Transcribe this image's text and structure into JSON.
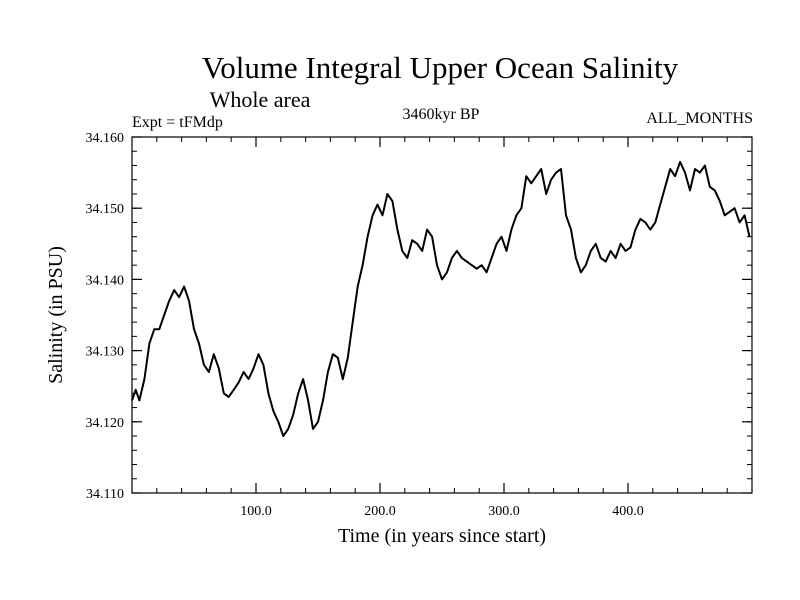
{
  "chart_data": {
    "type": "line",
    "title": "Volume Integral Upper Ocean Salinity",
    "subtitle": "Whole area",
    "left_label": "Expt = tFMdp",
    "center_label": "3460kyr BP",
    "right_label": "ALL_MONTHS",
    "xlabel": "Time (in years since start)",
    "ylabel": "Salinity (in PSU)",
    "xlim": [
      0,
      500
    ],
    "ylim": [
      34.11,
      34.16
    ],
    "x_ticks": [
      {
        "value": 100,
        "label": "100.0"
      },
      {
        "value": 200,
        "label": "200.0"
      },
      {
        "value": 300,
        "label": "300.0"
      },
      {
        "value": 400,
        "label": "400.0"
      }
    ],
    "y_ticks": [
      {
        "value": 34.11,
        "label": "34.110"
      },
      {
        "value": 34.12,
        "label": "34.120"
      },
      {
        "value": 34.13,
        "label": "34.130"
      },
      {
        "value": 34.14,
        "label": "34.140"
      },
      {
        "value": 34.15,
        "label": "34.150"
      },
      {
        "value": 34.16,
        "label": "34.160"
      }
    ],
    "series": [
      {
        "name": "salinity",
        "color": "#000000",
        "x": [
          0,
          3,
          6,
          10,
          14,
          18,
          22,
          26,
          30,
          34,
          38,
          42,
          46,
          50,
          54,
          58,
          62,
          66,
          70,
          74,
          78,
          82,
          86,
          90,
          94,
          98,
          102,
          106,
          110,
          114,
          118,
          122,
          126,
          130,
          134,
          138,
          142,
          146,
          150,
          154,
          158,
          162,
          166,
          170,
          174,
          178,
          182,
          186,
          190,
          194,
          198,
          202,
          206,
          210,
          214,
          218,
          222,
          226,
          230,
          234,
          238,
          242,
          246,
          250,
          254,
          258,
          262,
          266,
          270,
          274,
          278,
          282,
          286,
          290,
          294,
          298,
          302,
          306,
          310,
          314,
          318,
          322,
          326,
          330,
          334,
          338,
          342,
          346,
          350,
          354,
          358,
          362,
          366,
          370,
          374,
          378,
          382,
          386,
          390,
          394,
          398,
          402,
          406,
          410,
          414,
          418,
          422,
          426,
          430,
          434,
          438,
          442,
          446,
          450,
          454,
          458,
          462,
          466,
          470,
          474,
          478,
          482,
          486,
          490,
          494,
          498
        ],
        "values": [
          34.123,
          34.1245,
          34.123,
          34.126,
          34.131,
          34.133,
          34.133,
          34.135,
          34.137,
          34.1385,
          34.1375,
          34.139,
          34.137,
          34.133,
          34.131,
          34.128,
          34.127,
          34.1295,
          34.1275,
          34.124,
          34.1235,
          34.1245,
          34.1255,
          34.127,
          34.126,
          34.1275,
          34.1295,
          34.128,
          34.124,
          34.1215,
          34.12,
          34.118,
          34.119,
          34.121,
          34.124,
          34.126,
          34.123,
          34.119,
          34.12,
          34.123,
          34.127,
          34.1295,
          34.129,
          34.126,
          34.129,
          34.134,
          34.139,
          34.142,
          34.146,
          34.149,
          34.1505,
          34.149,
          34.152,
          34.151,
          34.147,
          34.144,
          34.143,
          34.1455,
          34.145,
          34.144,
          34.147,
          34.146,
          34.142,
          34.14,
          34.141,
          34.143,
          34.144,
          34.143,
          34.1425,
          34.142,
          34.1415,
          34.142,
          34.141,
          34.143,
          34.145,
          34.146,
          34.144,
          34.147,
          34.149,
          34.15,
          34.1545,
          34.1535,
          34.1545,
          34.1555,
          34.152,
          34.154,
          34.155,
          34.1555,
          34.149,
          34.147,
          34.143,
          34.141,
          34.142,
          34.144,
          34.145,
          34.143,
          34.1425,
          34.144,
          34.143,
          34.145,
          34.144,
          34.1445,
          34.147,
          34.1485,
          34.148,
          34.147,
          34.148,
          34.1505,
          34.153,
          34.1555,
          34.1545,
          34.1565,
          34.155,
          34.1525,
          34.1555,
          34.155,
          34.156,
          34.153,
          34.1525,
          34.151,
          34.149,
          34.1495,
          34.15,
          34.148,
          34.149,
          34.146
        ]
      }
    ]
  }
}
